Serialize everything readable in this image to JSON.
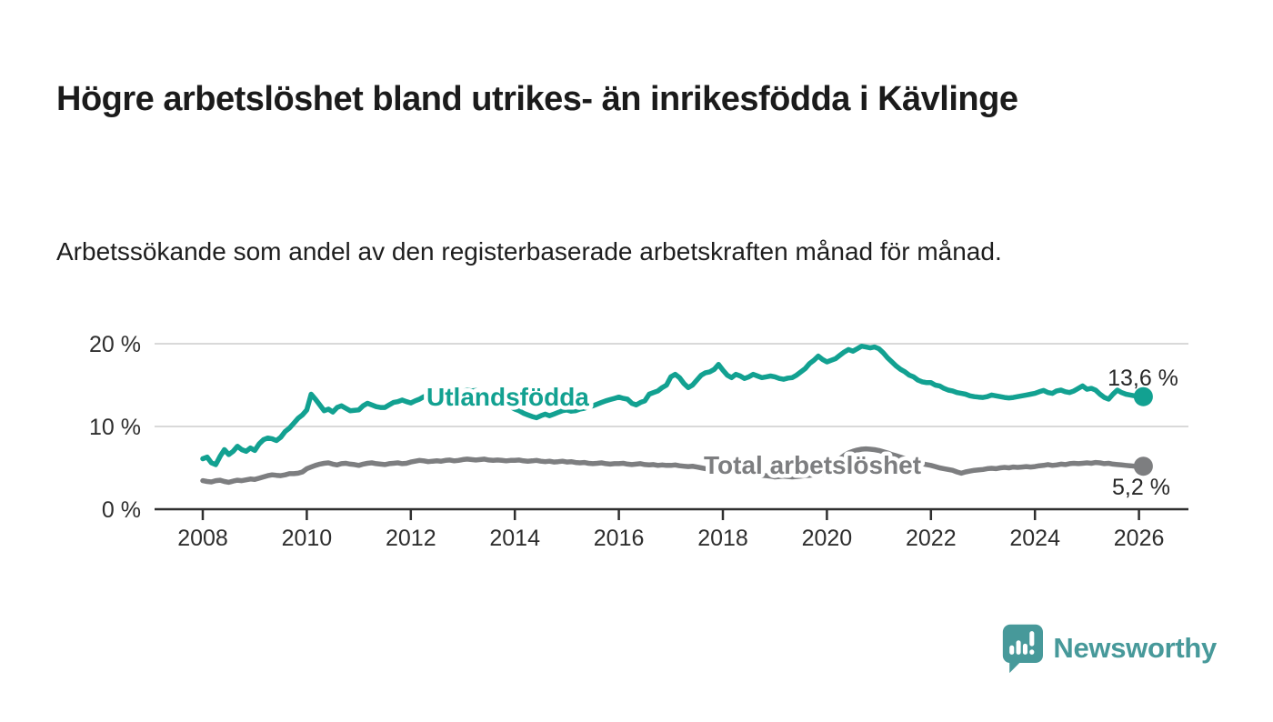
{
  "header": {
    "title": "Högre arbetslöshet bland utrikes- än inrikesfödda i Kävlinge",
    "subtitle": "Arbetssökande som andel av den registerbaserade arbetskraften månad för månad."
  },
  "chart_data": {
    "type": "line",
    "title": "Högre arbetslöshet bland utrikes- än inrikesfödda i Kävlinge",
    "subtitle": "Arbetssökande som andel av den registerbaserade arbetskraften månad för månad.",
    "x_range": [
      2008,
      2027
    ],
    "y_range": [
      0,
      20
    ],
    "grid": "horizontal",
    "legend_position": "inline-labels",
    "x_ticks": [
      2008,
      2010,
      2012,
      2014,
      2016,
      2018,
      2020,
      2022,
      2024,
      2026
    ],
    "y_ticks": [
      {
        "value": 0,
        "label": "0 %"
      },
      {
        "value": 10,
        "label": "10 %"
      },
      {
        "value": 20,
        "label": "20 %"
      }
    ],
    "unit": "percent",
    "frequency": "monthly",
    "series": [
      {
        "name": "Utlandsfödda",
        "color": "#12A191",
        "end_label": "13,6 %",
        "last_value": 13.6,
        "start": 2008.0,
        "step_years": 0.0833333,
        "values": [
          6.1,
          6.3,
          5.6,
          5.4,
          6.4,
          7.2,
          6.6,
          7.0,
          7.6,
          7.2,
          7.0,
          7.4,
          7.1,
          7.9,
          8.4,
          8.6,
          8.5,
          8.3,
          8.7,
          9.4,
          9.8,
          10.4,
          11.0,
          11.4,
          12.0,
          13.9,
          13.3,
          12.6,
          11.9,
          12.1,
          11.75,
          12.3,
          12.5,
          12.2,
          11.9,
          11.95,
          12.0,
          12.5,
          12.8,
          12.6,
          12.4,
          12.3,
          12.3,
          12.6,
          12.9,
          13.0,
          13.2,
          13.0,
          12.85,
          13.1,
          13.3,
          13.6,
          13.5,
          13.8,
          14.2,
          14.3,
          14.1,
          14.0,
          13.9,
          14.0,
          14.2,
          14.4,
          14.3,
          14.35,
          14.2,
          14.0,
          13.8,
          13.6,
          13.3,
          13.0,
          12.8,
          12.4,
          12.1,
          11.9,
          11.6,
          11.4,
          11.2,
          11.05,
          11.3,
          11.5,
          11.3,
          11.5,
          11.7,
          11.9,
          12.0,
          11.85,
          11.9,
          12.1,
          12.2,
          12.4,
          12.5,
          12.7,
          12.9,
          13.1,
          13.25,
          13.4,
          13.55,
          13.4,
          13.3,
          12.8,
          12.6,
          12.9,
          13.1,
          13.9,
          14.1,
          14.3,
          14.7,
          15.0,
          16.0,
          16.3,
          15.9,
          15.2,
          14.7,
          15.0,
          15.6,
          16.2,
          16.5,
          16.6,
          16.9,
          17.5,
          16.8,
          16.2,
          15.9,
          16.3,
          16.1,
          15.8,
          16.0,
          16.3,
          16.1,
          15.9,
          16.0,
          16.1,
          16.0,
          15.8,
          15.7,
          15.85,
          15.9,
          16.2,
          16.6,
          17.0,
          17.6,
          18.0,
          18.5,
          18.1,
          17.8,
          18.0,
          18.2,
          18.6,
          19.0,
          19.3,
          19.1,
          19.4,
          19.7,
          19.6,
          19.5,
          19.6,
          19.4,
          18.9,
          18.3,
          17.8,
          17.3,
          16.9,
          16.6,
          16.2,
          16.0,
          15.6,
          15.4,
          15.3,
          15.3,
          15.0,
          14.9,
          14.6,
          14.4,
          14.3,
          14.1,
          14.0,
          13.9,
          13.7,
          13.6,
          13.55,
          13.5,
          13.6,
          13.8,
          13.7,
          13.6,
          13.5,
          13.45,
          13.5,
          13.6,
          13.7,
          13.8,
          13.9,
          14.0,
          14.2,
          14.35,
          14.1,
          14.0,
          14.3,
          14.4,
          14.2,
          14.1,
          14.3,
          14.6,
          14.9,
          14.5,
          14.6,
          14.4,
          13.9,
          13.5,
          13.3,
          13.9,
          14.4,
          14.1,
          13.9,
          13.8,
          13.7,
          13.7,
          13.6
        ]
      },
      {
        "name": "Total arbetslöshet",
        "color": "#7D7E80",
        "end_label": "5,2 %",
        "last_value": 5.2,
        "start": 2008.0,
        "step_years": 0.0833333,
        "values": [
          3.45,
          3.35,
          3.3,
          3.45,
          3.5,
          3.35,
          3.25,
          3.4,
          3.5,
          3.45,
          3.55,
          3.65,
          3.6,
          3.75,
          3.9,
          4.05,
          4.15,
          4.1,
          4.05,
          4.15,
          4.3,
          4.3,
          4.35,
          4.5,
          4.9,
          5.1,
          5.3,
          5.45,
          5.55,
          5.6,
          5.45,
          5.35,
          5.5,
          5.55,
          5.45,
          5.4,
          5.3,
          5.45,
          5.55,
          5.6,
          5.5,
          5.45,
          5.4,
          5.5,
          5.55,
          5.6,
          5.5,
          5.55,
          5.7,
          5.8,
          5.9,
          5.85,
          5.75,
          5.8,
          5.85,
          5.8,
          5.9,
          5.95,
          5.85,
          5.9,
          6.0,
          6.05,
          6.0,
          5.95,
          6.0,
          6.05,
          5.95,
          5.9,
          5.95,
          5.9,
          5.85,
          5.9,
          5.9,
          5.95,
          5.85,
          5.8,
          5.85,
          5.9,
          5.8,
          5.75,
          5.8,
          5.7,
          5.75,
          5.8,
          5.7,
          5.75,
          5.65,
          5.6,
          5.65,
          5.55,
          5.5,
          5.55,
          5.6,
          5.5,
          5.45,
          5.5,
          5.5,
          5.55,
          5.45,
          5.4,
          5.45,
          5.5,
          5.4,
          5.35,
          5.4,
          5.3,
          5.35,
          5.3,
          5.3,
          5.35,
          5.25,
          5.2,
          5.15,
          5.2,
          5.1,
          5.0,
          4.9,
          4.85,
          4.8,
          4.75,
          4.7,
          4.65,
          4.6,
          4.65,
          4.55,
          4.5,
          4.4,
          4.3,
          4.2,
          4.1,
          4.05,
          4.0,
          3.9,
          3.95,
          4.0,
          3.95,
          3.9,
          3.95,
          4.0,
          4.05,
          4.1,
          4.15,
          4.2,
          4.3,
          4.5,
          4.8,
          5.5,
          6.1,
          6.5,
          6.8,
          7.0,
          7.15,
          7.25,
          7.3,
          7.25,
          7.2,
          7.1,
          6.95,
          6.8,
          6.6,
          6.45,
          6.3,
          6.1,
          5.95,
          5.8,
          5.65,
          5.5,
          5.4,
          5.3,
          5.15,
          5.0,
          4.9,
          4.8,
          4.7,
          4.5,
          4.35,
          4.5,
          4.6,
          4.7,
          4.75,
          4.8,
          4.9,
          4.95,
          4.9,
          5.0,
          5.05,
          5.0,
          5.1,
          5.05,
          5.1,
          5.15,
          5.1,
          5.15,
          5.25,
          5.3,
          5.4,
          5.3,
          5.35,
          5.45,
          5.4,
          5.5,
          5.55,
          5.5,
          5.55,
          5.6,
          5.55,
          5.65,
          5.6,
          5.5,
          5.55,
          5.45,
          5.4,
          5.35,
          5.3,
          5.25,
          5.2,
          5.25,
          5.2
        ]
      }
    ]
  },
  "footer": {
    "brand": "Newsworthy",
    "logo_color": "#47999A"
  },
  "colors": {
    "accent_teal": "#12A191",
    "line_gray": "#7D7E80",
    "gridline": "#D9D9D9",
    "axis": "#2F2F2F"
  }
}
